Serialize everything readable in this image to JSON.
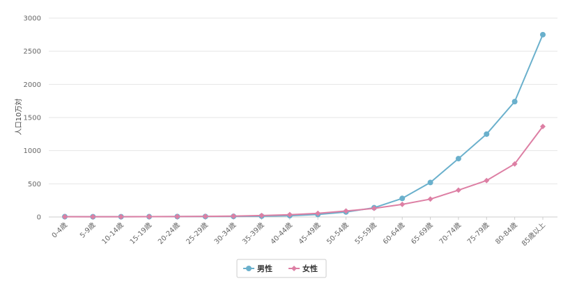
{
  "chart_data": {
    "type": "line",
    "categories": [
      "0-4歳",
      "5-9歳",
      "10-14歳",
      "15-19歳",
      "20-24歳",
      "25-29歳",
      "30-34歳",
      "35-39歳",
      "40-44歳",
      "45-49歳",
      "50-54歳",
      "55-59歳",
      "60-64歳",
      "65-69歳",
      "70-74歳",
      "75-79歳",
      "80-84歳",
      "85歳以上"
    ],
    "series": [
      {
        "name": "男性",
        "color": "#6ab0cc",
        "marker": "circle",
        "values": [
          5,
          4,
          4,
          5,
          6,
          7,
          9,
          12,
          20,
          38,
          75,
          140,
          280,
          520,
          880,
          1250,
          1740,
          2750
        ]
      },
      {
        "name": "女性",
        "color": "#dd7fa4",
        "marker": "diamond",
        "values": [
          4,
          4,
          4,
          5,
          6,
          9,
          13,
          22,
          35,
          55,
          90,
          130,
          190,
          270,
          405,
          550,
          800,
          1365
        ]
      }
    ],
    "xlabel": "",
    "ylabel": "人口10万対",
    "ylim": [
      0,
      3000
    ],
    "yticks": [
      0,
      500,
      1000,
      1500,
      2000,
      2500,
      3000
    ],
    "grid": true,
    "legend_position": "bottom"
  }
}
